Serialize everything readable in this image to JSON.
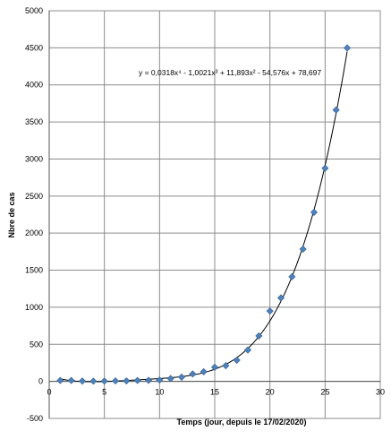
{
  "chart_data": {
    "type": "scatter",
    "xlabel": "Temps (jour, depuis le 17/02/2020)",
    "ylabel": "Nbre de cas",
    "xlim": [
      0,
      30
    ],
    "ylim": [
      -500,
      5000
    ],
    "x_ticks": [
      0,
      5,
      10,
      15,
      20,
      25,
      30
    ],
    "y_ticks": [
      -500,
      0,
      500,
      1000,
      1500,
      2000,
      2500,
      3000,
      3500,
      4000,
      4500,
      5000
    ],
    "grid": true,
    "series": [
      {
        "marker": "diamond",
        "color": "#4f81bd",
        "points": [
          [
            1,
            12
          ],
          [
            2,
            12
          ],
          [
            3,
            4
          ],
          [
            4,
            3
          ],
          [
            5,
            4
          ],
          [
            6,
            6
          ],
          [
            7,
            6
          ],
          [
            8,
            12
          ],
          [
            9,
            14
          ],
          [
            10,
            18
          ],
          [
            11,
            38
          ],
          [
            12,
            57
          ],
          [
            13,
            100
          ],
          [
            14,
            130
          ],
          [
            15,
            191
          ],
          [
            16,
            212
          ],
          [
            17,
            285
          ],
          [
            18,
            423
          ],
          [
            19,
            613
          ],
          [
            20,
            949
          ],
          [
            21,
            1126
          ],
          [
            22,
            1412
          ],
          [
            23,
            1784
          ],
          [
            24,
            2281
          ],
          [
            25,
            2876
          ],
          [
            26,
            3661
          ],
          [
            27,
            4499
          ]
        ]
      }
    ],
    "trendline": {
      "type": "polynomial",
      "coefficients": [
        0.0318,
        -1.0021,
        11.893,
        -54.576,
        78.697
      ],
      "equation": "y = 0,0318x⁴ - 1,0021x³ + 11,893x² - 54,576x + 78,697",
      "color": "#000000"
    }
  }
}
